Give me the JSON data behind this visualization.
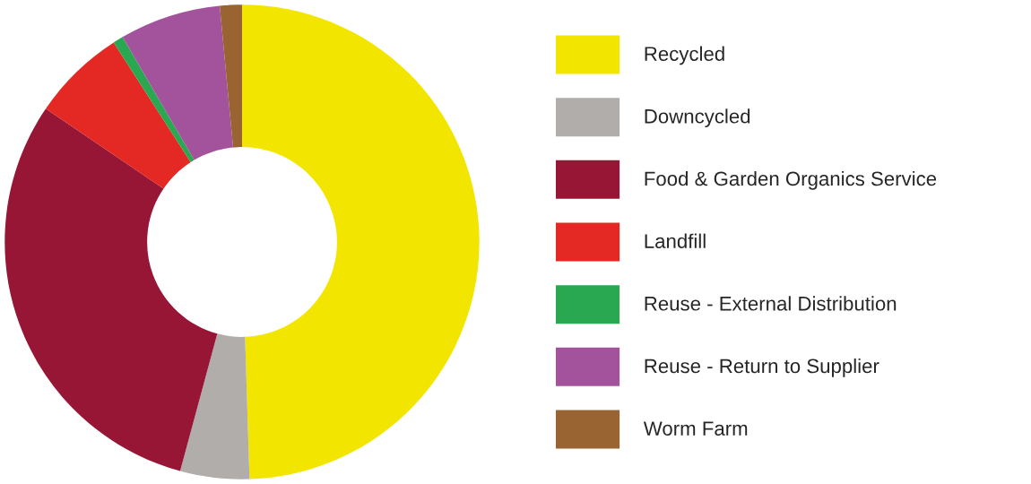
{
  "chart_data": {
    "type": "donut",
    "categories": [
      "Recycled",
      "Downcycled",
      "Food & Garden Organics Service",
      "Landfill",
      "Reuse - External Distribution",
      "Reuse - Return to Supplier",
      "Worm Farm"
    ],
    "values": [
      49.5,
      4.7,
      30.3,
      6.4,
      0.7,
      6.9,
      1.5
    ],
    "colors": [
      "#f2e600",
      "#b0adab",
      "#981635",
      "#e42823",
      "#29a851",
      "#a3529c",
      "#996431"
    ],
    "legend": "right"
  }
}
